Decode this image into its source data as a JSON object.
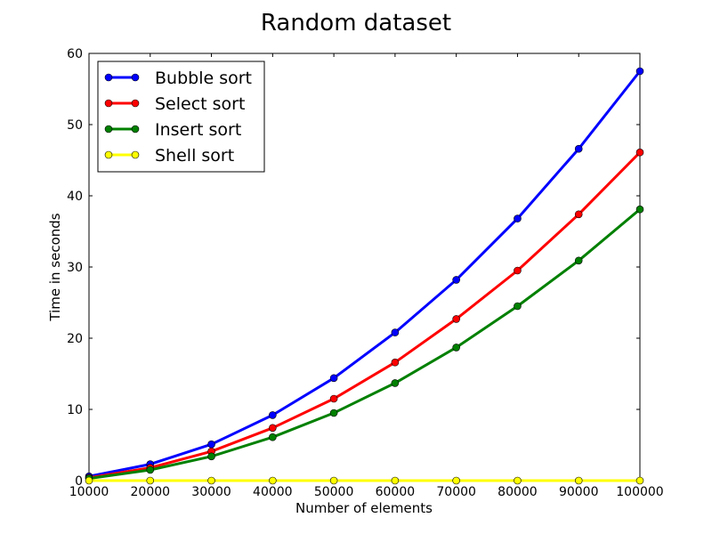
{
  "chart_data": {
    "type": "line",
    "title": "Random dataset",
    "xlabel": "Number of elements",
    "ylabel": "Time in seconds",
    "x": [
      10000,
      20000,
      30000,
      40000,
      50000,
      60000,
      70000,
      80000,
      90000,
      100000
    ],
    "xlim": [
      10000,
      100000
    ],
    "ylim": [
      0,
      60
    ],
    "xticks": [
      10000,
      20000,
      30000,
      40000,
      50000,
      60000,
      70000,
      80000,
      90000,
      100000
    ],
    "yticks": [
      0,
      10,
      20,
      30,
      40,
      50,
      60
    ],
    "grid": false,
    "legend_position": "top-left",
    "series": [
      {
        "name": "Bubble sort",
        "color": "#0000ff",
        "values": [
          0.6,
          2.3,
          5.1,
          9.2,
          14.4,
          20.8,
          28.2,
          36.8,
          46.6,
          57.5
        ]
      },
      {
        "name": "Select sort",
        "color": "#ff0000",
        "values": [
          0.4,
          1.8,
          4.1,
          7.4,
          11.5,
          16.6,
          22.7,
          29.5,
          37.4,
          46.1
        ]
      },
      {
        "name": "Insert sort",
        "color": "#008000",
        "values": [
          0.3,
          1.5,
          3.4,
          6.1,
          9.5,
          13.7,
          18.7,
          24.5,
          30.9,
          38.1
        ]
      },
      {
        "name": "Shell sort",
        "color": "#ffff00",
        "values": [
          0.0,
          0.0,
          0.0,
          0.0,
          0.0,
          0.0,
          0.0,
          0.0,
          0.0,
          0.0
        ]
      }
    ]
  }
}
